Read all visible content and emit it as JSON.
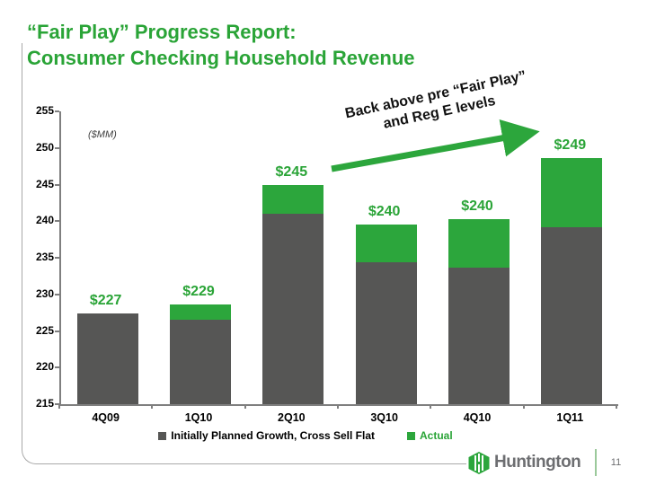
{
  "slide": {
    "title_line1": "“Fair Play” Progress Report:",
    "title_line2": "Consumer Checking Household Revenue",
    "page_number": "11",
    "logo_text": "Huntington"
  },
  "annotation": {
    "line1": "Back above pre “Fair Play”",
    "line2": "and Reg E levels"
  },
  "legend": [
    {
      "label": "Initially Planned Growth, Cross Sell Flat",
      "color": "#565655",
      "text_color": "#000000"
    },
    {
      "label": "Actual",
      "color": "#2ca63c",
      "text_color": "#2aa437"
    }
  ],
  "colors": {
    "accent_green": "#2aa437",
    "bar_green": "#2ca63c",
    "bar_gray": "#565655",
    "axis_gray": "#7f7f7f",
    "logo_gray": "#6d6e71"
  },
  "chart_data": {
    "type": "bar",
    "stacked": true,
    "title": "",
    "units": "($MM)",
    "categories": [
      "4Q09",
      "1Q10",
      "2Q10",
      "3Q10",
      "4Q10",
      "1Q11"
    ],
    "series": [
      {
        "name": "Initially Planned Growth, Cross Sell Flat",
        "color": "#565655",
        "values": [
          227.4,
          226.5,
          241.0,
          234.4,
          233.7,
          239.2
        ]
      },
      {
        "name": "Actual",
        "color": "#2ca63c",
        "values": [
          0,
          2.1,
          3.9,
          5.2,
          6.6,
          9.4
        ]
      }
    ],
    "actual_totals": [
      227.4,
      228.6,
      244.9,
      239.6,
      240.3,
      248.6
    ],
    "bar_labels": [
      "$227",
      "$229",
      "$245",
      "$240",
      "$240",
      "$249"
    ],
    "ylim": [
      215,
      255
    ],
    "yticks": [
      215,
      220,
      225,
      230,
      235,
      240,
      245,
      250,
      255
    ],
    "grid": false,
    "legend_position": "bottom"
  }
}
